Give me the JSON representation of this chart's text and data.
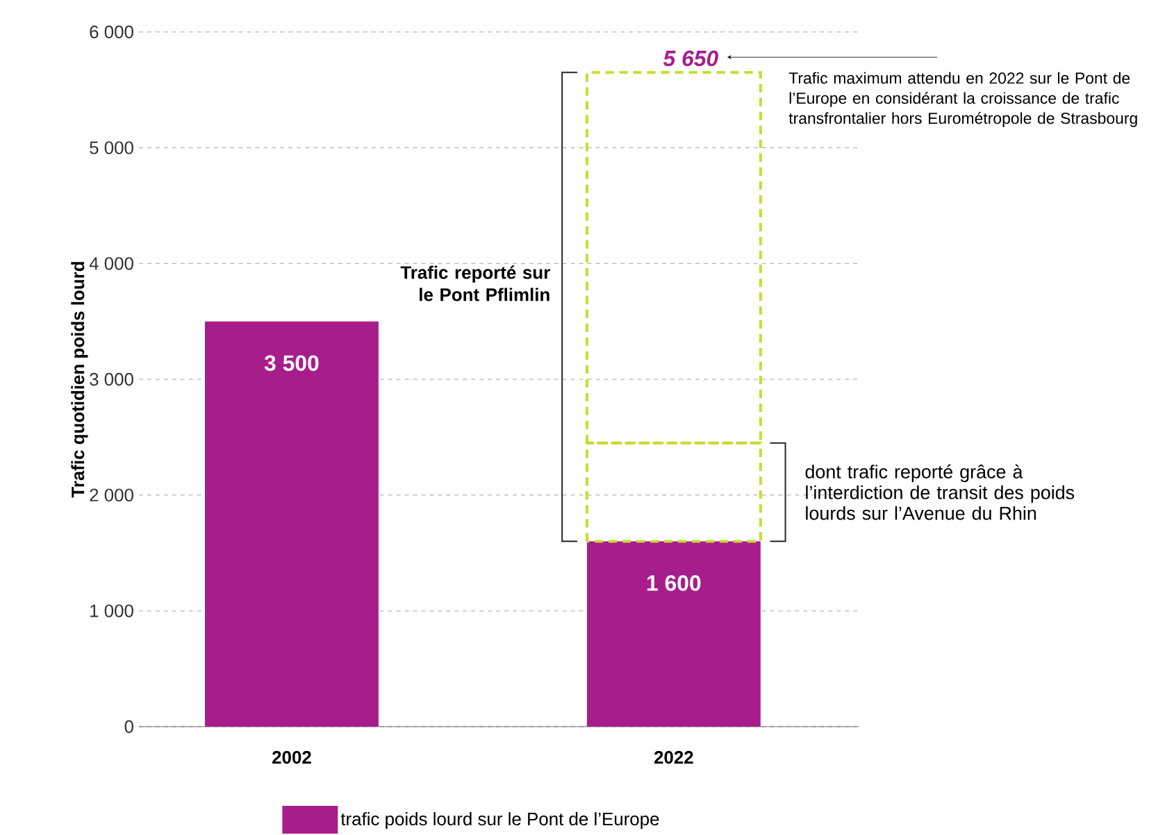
{
  "chart_data": {
    "type": "bar",
    "stacked": true,
    "ylabel": "Trafic quotidien poids lourd",
    "categories": [
      "2002",
      "2022"
    ],
    "series": [
      {
        "name": "trafic poids lourd sur le Pont de l’Europe",
        "color": "#a71d8c",
        "values": [
          3500,
          1600
        ],
        "value_labels": [
          "3 500",
          "1 600"
        ]
      },
      {
        "color": "#c8dc2e",
        "line_style": "dashed",
        "values": [
          null,
          850
        ]
      },
      {
        "color": "#c8dc2e",
        "line_style": "dashed",
        "values": [
          null,
          3200
        ]
      }
    ],
    "totals": [
      null,
      "5 650"
    ],
    "ylim": [
      0,
      6000
    ],
    "yticks": [
      {
        "value": 0,
        "label": "0"
      },
      {
        "value": 1000,
        "label": "1 000"
      },
      {
        "value": 2000,
        "label": "2 000"
      },
      {
        "value": 3000,
        "label": "3 000"
      },
      {
        "value": 4000,
        "label": "4 000"
      },
      {
        "value": 5000,
        "label": "5 000"
      },
      {
        "value": 6000,
        "label": "6 000"
      }
    ],
    "grid": "y",
    "legend": "bottom",
    "annotations": [
      "Trafic maximum attendu en 2022 sur le Pont de l’Europe en considérant la croissance de trafic transfrontalier hors Eurométropole de Strasbourg",
      "Trafic reporté sur le Pont Pflimlin",
      "dont trafic reporté grâce à l’interdiction de transit des poids lourds sur l’Avenue du Rhin"
    ]
  }
}
